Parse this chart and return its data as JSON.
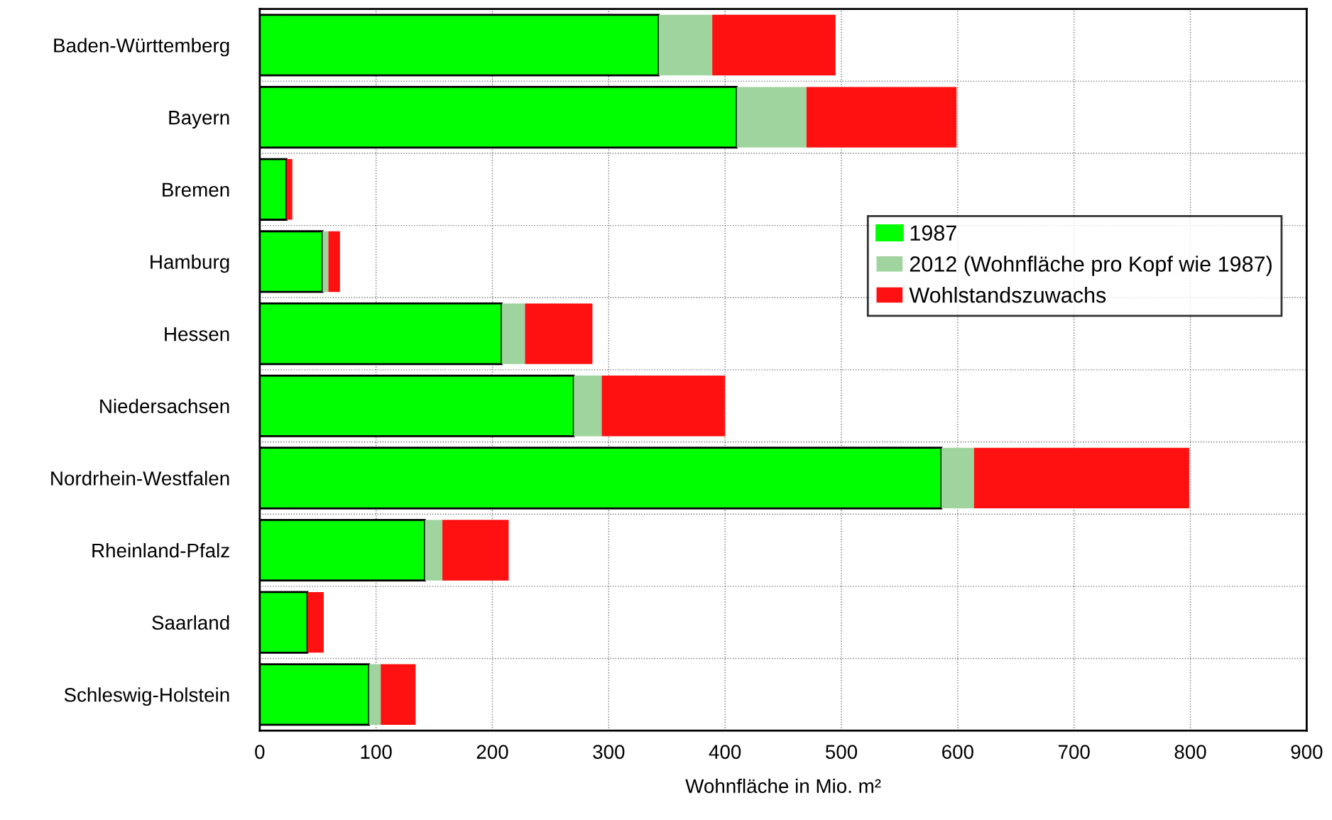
{
  "chart_data": {
    "type": "bar",
    "orientation": "horizontal",
    "stacked": true,
    "categories": [
      "Baden-Württemberg",
      "Bayern",
      "Bremen",
      "Hamburg",
      "Hessen",
      "Niedersachsen",
      "Nordrhein-Westfalen",
      "Rheinland-Pfalz",
      "Saarland",
      "Schleswig-Holstein"
    ],
    "series": [
      {
        "name": "1987",
        "color": "#00ff00",
        "values": [
          343,
          410,
          23,
          54,
          208,
          270,
          586,
          142,
          41,
          94
        ]
      },
      {
        "name": "2012 (Wohnfläche pro Kopf wie 1987)",
        "color": "#9fd49f",
        "values": [
          46,
          60,
          0,
          5,
          20,
          24,
          28,
          15,
          null,
          10
        ]
      },
      {
        "name": "Wohlstandszuwachs",
        "color": "#ff1111",
        "values": [
          106,
          129,
          5,
          10,
          58,
          106,
          185,
          57,
          14,
          30
        ]
      }
    ],
    "xlabel": "Wohnfläche in Mio. m²",
    "xlim": [
      0,
      900
    ],
    "xticks": [
      0,
      100,
      200,
      300,
      400,
      500,
      600,
      700,
      800,
      900
    ],
    "grid": true,
    "legend": "right"
  }
}
